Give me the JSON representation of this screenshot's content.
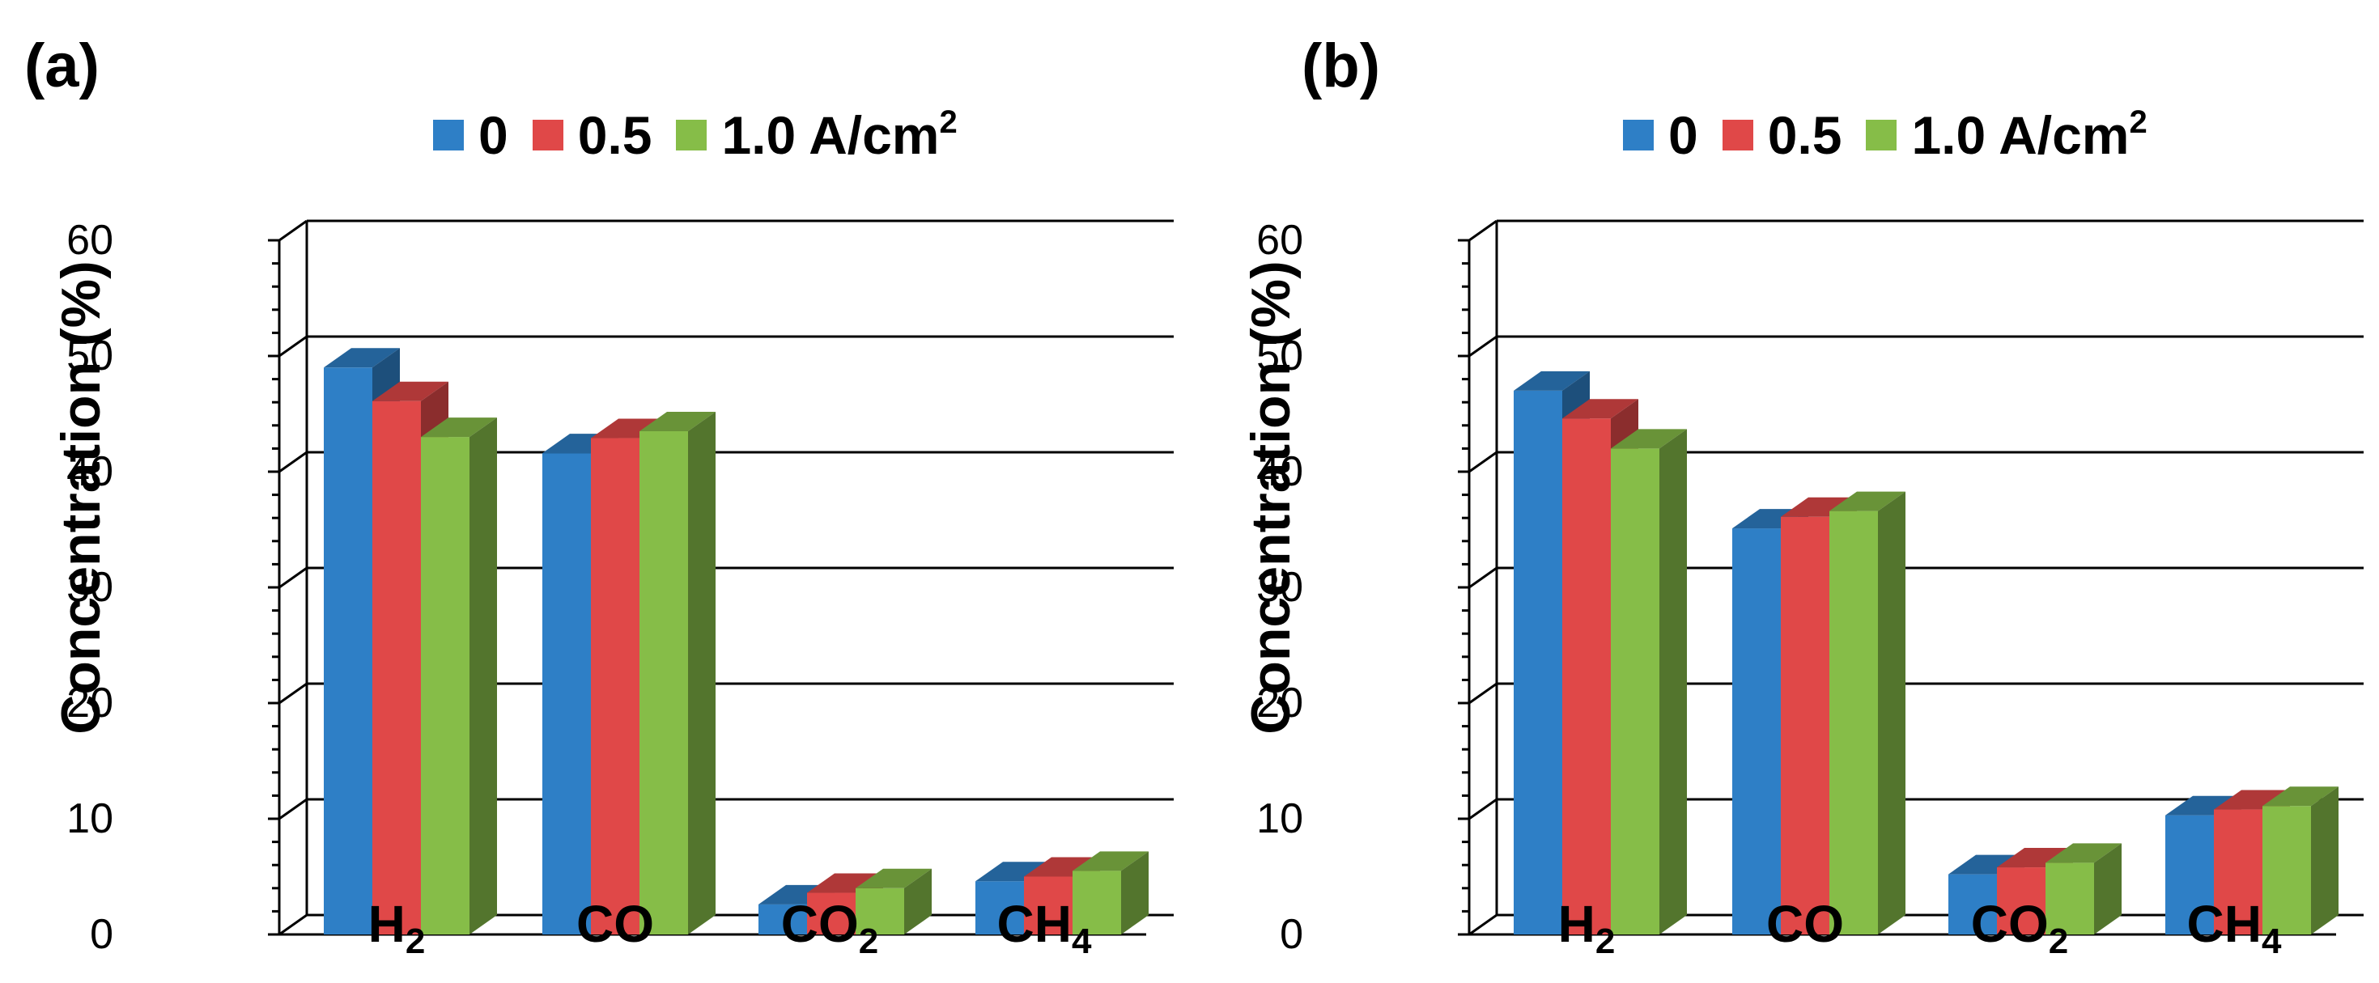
{
  "colors": {
    "series0": "#2E7FC6",
    "series1": "#E04848",
    "series2": "#86BD48"
  },
  "chart_data": [
    {
      "panel": "(a)",
      "type": "bar",
      "ylabel": "Concentration (%)",
      "ylim": [
        0,
        60
      ],
      "yticks": [
        "0",
        "10",
        "20",
        "30",
        "40",
        "50",
        "60"
      ],
      "categories": [
        "H",
        "CO",
        "CO",
        "CH"
      ],
      "category_subscripts": [
        "2",
        "",
        "2",
        "4"
      ],
      "legend_labels": [
        "0",
        "0.5",
        "1.0 A/cm"
      ],
      "legend_unit_sup": "2",
      "series": [
        {
          "name": "0",
          "values": [
            49,
            41.6,
            2.6,
            4.6
          ]
        },
        {
          "name": "0.5",
          "values": [
            46.1,
            42.9,
            3.6,
            5.0
          ]
        },
        {
          "name": "1.0 A/cm2",
          "values": [
            43.0,
            43.5,
            4.0,
            5.5
          ]
        }
      ]
    },
    {
      "panel": "(b)",
      "type": "bar",
      "ylabel": "Concentration (%)",
      "ylim": [
        0,
        60
      ],
      "yticks": [
        "0",
        "10",
        "20",
        "30",
        "40",
        "50",
        "60"
      ],
      "categories": [
        "H",
        "CO",
        "CO",
        "CH"
      ],
      "category_subscripts": [
        "2",
        "",
        "2",
        "4"
      ],
      "legend_labels": [
        "0",
        "0.5",
        "1.0 A/cm"
      ],
      "legend_unit_sup": "2",
      "series": [
        {
          "name": "0",
          "values": [
            47.0,
            35.1,
            5.2,
            10.3
          ]
        },
        {
          "name": "0.5",
          "values": [
            44.6,
            36.1,
            5.8,
            10.8
          ]
        },
        {
          "name": "1.0 A/cm2",
          "values": [
            42.0,
            36.6,
            6.2,
            11.1
          ]
        }
      ]
    }
  ]
}
